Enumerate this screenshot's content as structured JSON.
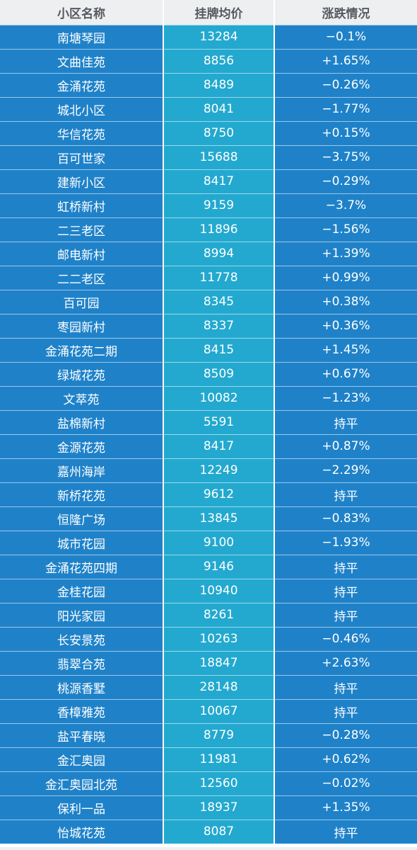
{
  "table": {
    "headers": [
      "小区名称",
      "挂牌均价",
      "涨跌情况"
    ],
    "rows": [
      [
        "南塘琴园",
        "13284",
        "−0.1%"
      ],
      [
        "文曲佳苑",
        "8856",
        "+1.65%"
      ],
      [
        "金涌花苑",
        "8489",
        "−0.26%"
      ],
      [
        "城北小区",
        "8041",
        "−1.77%"
      ],
      [
        "华信花苑",
        "8750",
        "+0.15%"
      ],
      [
        "百可世家",
        "15688",
        "−3.75%"
      ],
      [
        "建新小区",
        "8417",
        "−0.29%"
      ],
      [
        "虹桥新村",
        "9159",
        "−3.7%"
      ],
      [
        "二三老区",
        "11896",
        "−1.56%"
      ],
      [
        "邮电新村",
        "8994",
        "+1.39%"
      ],
      [
        "二二老区",
        "11778",
        "+0.99%"
      ],
      [
        "百可园",
        "8345",
        "+0.38%"
      ],
      [
        "枣园新村",
        "8337",
        "+0.36%"
      ],
      [
        "金涌花苑二期",
        "8415",
        "+1.45%"
      ],
      [
        "绿城花苑",
        "8509",
        "+0.67%"
      ],
      [
        "文萃苑",
        "10082",
        "−1.23%"
      ],
      [
        "盐棉新村",
        "5591",
        "持平"
      ],
      [
        "金源花苑",
        "8417",
        "+0.87%"
      ],
      [
        "嘉州海岸",
        "12249",
        "−2.29%"
      ],
      [
        "新桥花苑",
        "9612",
        "持平"
      ],
      [
        "恒隆广场",
        "13845",
        "−0.83%"
      ],
      [
        "城市花园",
        "9100",
        "−1.93%"
      ],
      [
        "金涌花苑四期",
        "9146",
        "持平"
      ],
      [
        "金桂花园",
        "10940",
        "持平"
      ],
      [
        "阳光家园",
        "8261",
        "持平"
      ],
      [
        "长安景苑",
        "10263",
        "−0.46%"
      ],
      [
        "翡翠合苑",
        "18847",
        "+2.63%"
      ],
      [
        "桃源香墅",
        "28148",
        "持平"
      ],
      [
        "香樟雅苑",
        "10067",
        "持平"
      ],
      [
        "盐平春晓",
        "8779",
        "−0.28%"
      ],
      [
        "金汇奥园",
        "11981",
        "+0.62%"
      ],
      [
        "金汇奥园北苑",
        "12560",
        "−0.02%"
      ],
      [
        "保利一品",
        "18937",
        "+1.35%"
      ],
      [
        "怡城花苑",
        "8087",
        "持平"
      ]
    ]
  },
  "colors": {
    "header_bg": "#eeeff1",
    "header_text": "#555a60",
    "name_col_bg": "#1f82c9",
    "price_col_bg": "#23a9cf",
    "change_col_bg": "#1f82c9",
    "row_text": "#ffffff"
  }
}
